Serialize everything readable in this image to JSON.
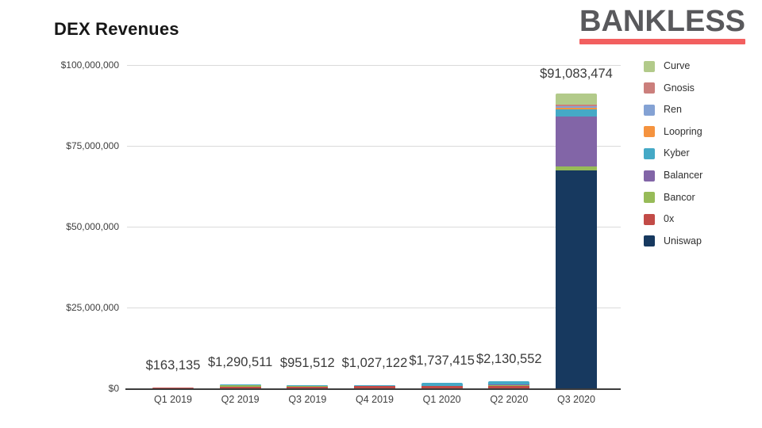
{
  "page": {
    "background": "#ffffff"
  },
  "logo": {
    "text": "BANKLESS",
    "text_color": "#59595c",
    "underline_color": "#f25f5f"
  },
  "chart_data": {
    "type": "bar",
    "stacked": true,
    "title": "DEX Revenues",
    "xlabel": "",
    "ylabel": "",
    "grid": true,
    "legend_position": "right",
    "categories": [
      "Q1 2019",
      "Q2 2019",
      "Q3 2019",
      "Q4 2019",
      "Q1 2020",
      "Q2 2020",
      "Q3 2020"
    ],
    "series": [
      {
        "name": "Uniswap",
        "color": "#17395f",
        "values": [
          0,
          0,
          0,
          0,
          0,
          0,
          67400000
        ]
      },
      {
        "name": "0x",
        "color": "#c24b47",
        "values": [
          163135,
          500000,
          450000,
          800000,
          850000,
          620000,
          0
        ]
      },
      {
        "name": "Bancor",
        "color": "#97bb58",
        "values": [
          0,
          380000,
          180000,
          0,
          0,
          250000,
          1200000
        ]
      },
      {
        "name": "Balancer",
        "color": "#8265a7",
        "values": [
          0,
          0,
          0,
          0,
          0,
          400000,
          15500000
        ]
      },
      {
        "name": "Kyber",
        "color": "#45a9c6",
        "values": [
          0,
          410511,
          321512,
          227122,
          887415,
          860552,
          2100000
        ]
      },
      {
        "name": "Loopring",
        "color": "#f5933f",
        "values": [
          0,
          0,
          0,
          0,
          0,
          0,
          490000
        ]
      },
      {
        "name": "Ren",
        "color": "#84a2d4",
        "values": [
          0,
          0,
          0,
          0,
          0,
          0,
          490000
        ]
      },
      {
        "name": "Gnosis",
        "color": "#cb7f7c",
        "values": [
          0,
          0,
          0,
          0,
          0,
          0,
          650000
        ]
      },
      {
        "name": "Curve",
        "color": "#b2ca8a",
        "values": [
          0,
          0,
          0,
          0,
          0,
          0,
          3253474
        ]
      }
    ],
    "totals": [
      163135,
      1290511,
      951512,
      1027122,
      1737415,
      2130552,
      91083474
    ],
    "total_labels": [
      "$163,135",
      "$1,290,511",
      "$951,512",
      "$1,027,122",
      "$1,737,415",
      "$2,130,552",
      "$91,083,474"
    ],
    "y_axis": {
      "max": 100000000,
      "ticks": [
        {
          "value": 0,
          "label": "$0"
        },
        {
          "value": 25000000,
          "label": "$25,000,000"
        },
        {
          "value": 50000000,
          "label": "$50,000,000"
        },
        {
          "value": 75000000,
          "label": "$75,000,000"
        },
        {
          "value": 100000000,
          "label": "$100,000,000"
        }
      ]
    },
    "legend_order_top_to_bottom": [
      "Curve",
      "Gnosis",
      "Ren",
      "Loopring",
      "Kyber",
      "Balancer",
      "Bancor",
      "0x",
      "Uniswap"
    ]
  }
}
